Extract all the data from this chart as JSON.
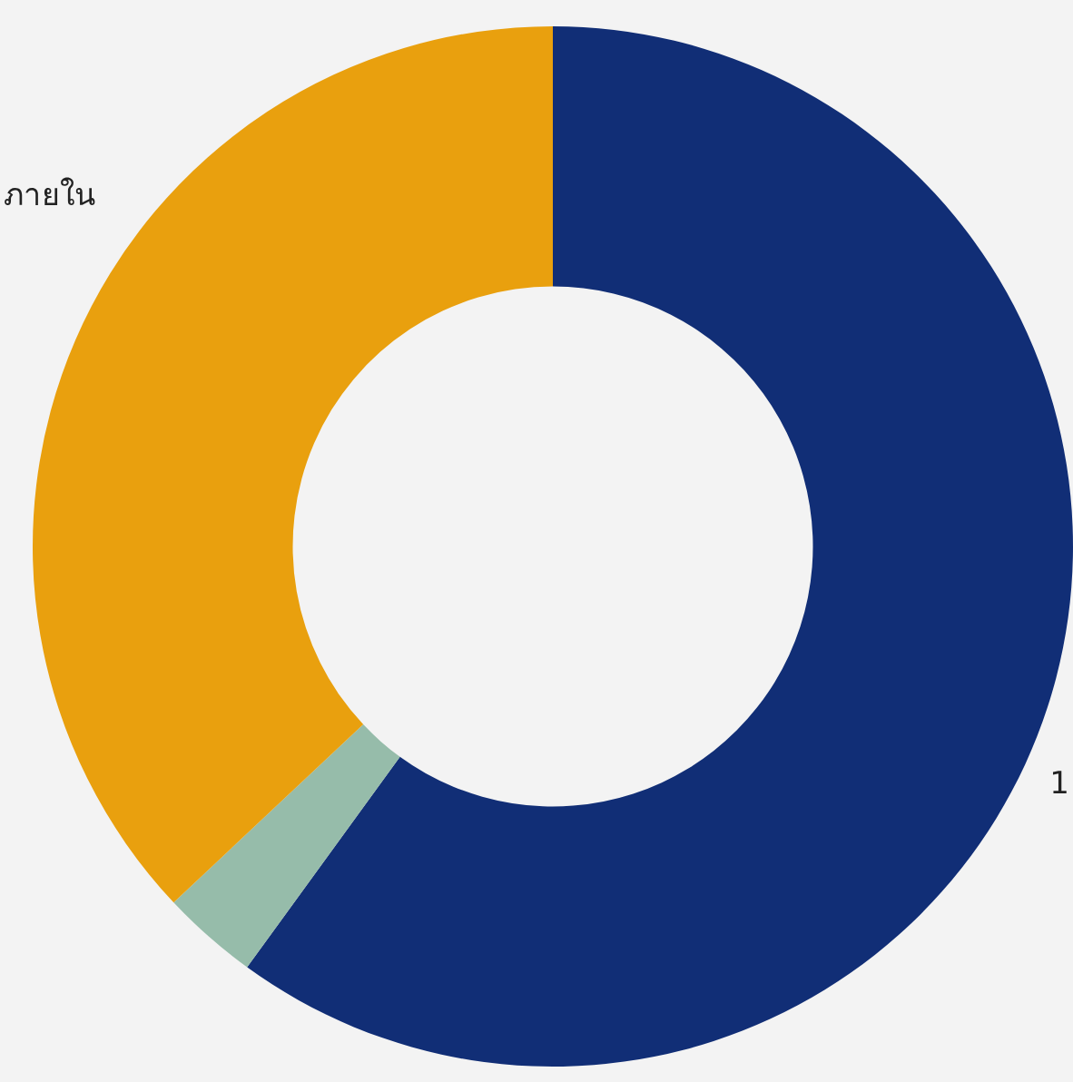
{
  "chart_data": {
    "type": "donut",
    "categories": [
      "1",
      null,
      "ภายใน"
    ],
    "values": [
      60,
      3,
      37
    ],
    "colors": [
      "#112e76",
      "#96bcaa",
      "#e9a00e"
    ],
    "legend": false
  }
}
